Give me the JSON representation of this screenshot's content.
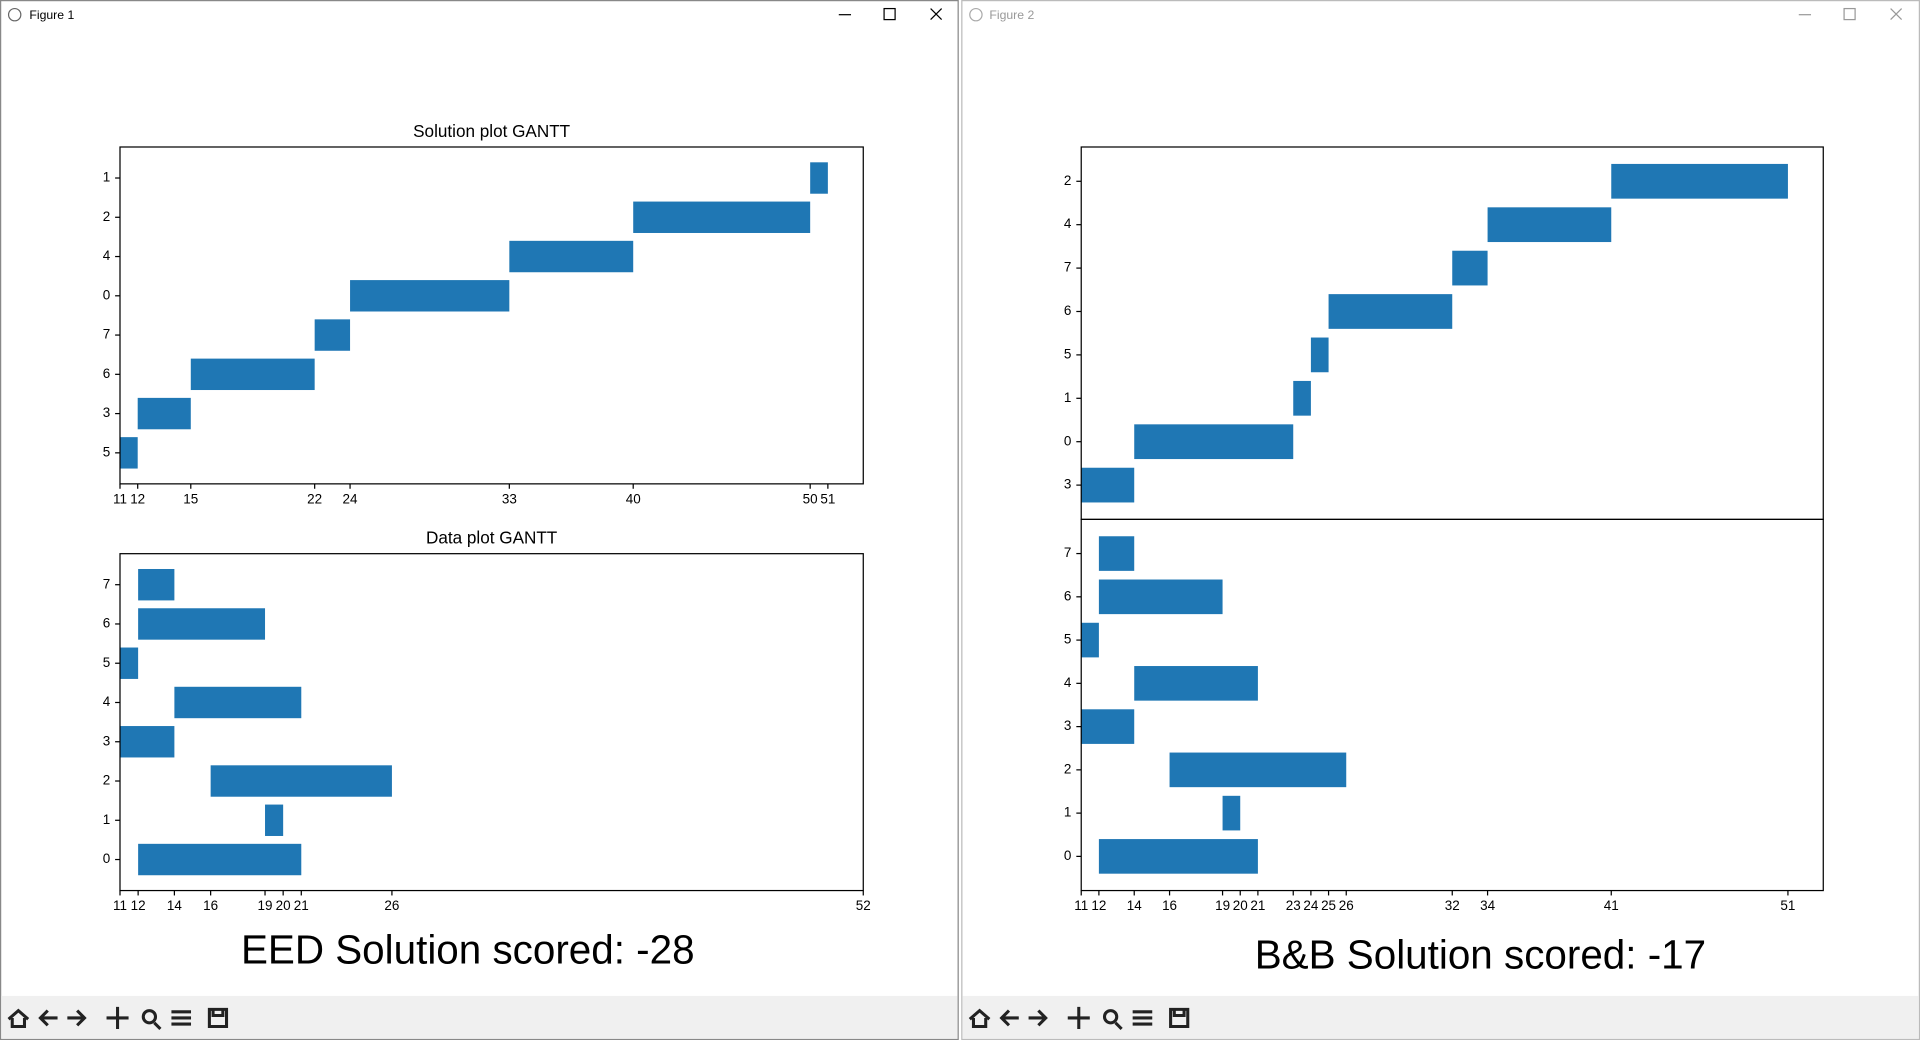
{
  "windows": [
    {
      "title": "Figure 1",
      "score_text": "EED Solution scored: -28"
    },
    {
      "title": "Figure 2",
      "score_text": "B&B Solution scored: -17"
    }
  ],
  "chart_data": [
    {
      "type": "gantt",
      "title": "Solution plot GANTT",
      "color": "#1f77b4",
      "categories": [
        "5",
        "3",
        "6",
        "7",
        "0",
        "4",
        "2",
        "1"
      ],
      "start": [
        11,
        12,
        15,
        22,
        24,
        33,
        40,
        50
      ],
      "end": [
        12,
        15,
        22,
        24,
        33,
        40,
        50,
        51
      ],
      "xlim": [
        11,
        53
      ],
      "xticks": [
        11,
        12,
        15,
        22,
        24,
        33,
        40,
        50,
        51
      ]
    },
    {
      "type": "gantt",
      "title": "Data plot GANTT",
      "color": "#1f77b4",
      "categories": [
        "0",
        "1",
        "2",
        "3",
        "4",
        "5",
        "6",
        "7"
      ],
      "start": [
        12,
        19,
        16,
        11,
        14,
        11,
        12,
        12
      ],
      "end": [
        21,
        20,
        26,
        14,
        21,
        12,
        19,
        14
      ],
      "xlim": [
        11,
        52
      ],
      "xticks": [
        11,
        12,
        14,
        16,
        19,
        20,
        21,
        26,
        52
      ]
    },
    {
      "type": "gantt",
      "color": "#1f77b4",
      "categories": [
        "3",
        "0",
        "1",
        "5",
        "6",
        "7",
        "4",
        "2"
      ],
      "start": [
        11,
        14,
        23,
        24,
        25,
        32,
        34,
        41
      ],
      "end": [
        14,
        23,
        24,
        25,
        32,
        34,
        41,
        51
      ],
      "xlim": [
        11,
        53
      ]
    },
    {
      "type": "gantt",
      "color": "#1f77b4",
      "categories": [
        "0",
        "1",
        "2",
        "3",
        "4",
        "5",
        "6",
        "7"
      ],
      "start": [
        12,
        19,
        16,
        11,
        14,
        11,
        12,
        12
      ],
      "end": [
        21,
        20,
        26,
        14,
        21,
        12,
        19,
        14
      ],
      "xlim": [
        11,
        53
      ],
      "xticks": [
        11,
        12,
        14,
        16,
        19,
        20,
        21,
        23,
        24,
        25,
        26,
        32,
        34,
        41,
        51
      ]
    }
  ]
}
